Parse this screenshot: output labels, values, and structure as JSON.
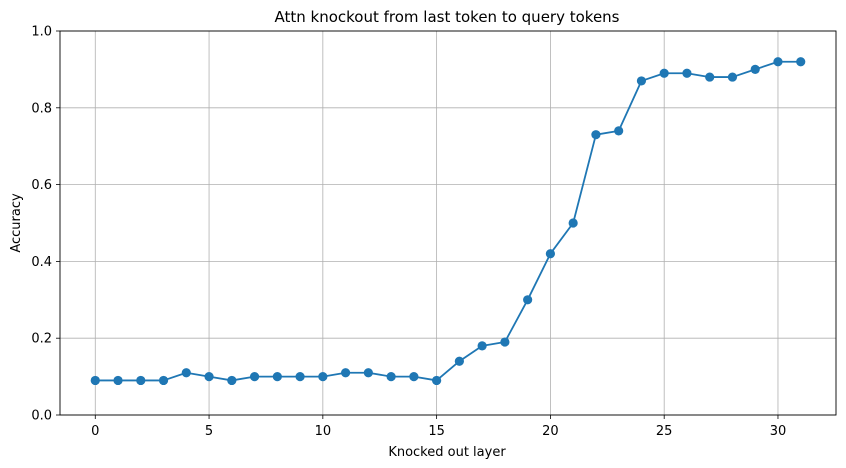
{
  "chart_data": {
    "type": "line",
    "title": "Attn knockout from last token to query tokens",
    "xlabel": "Knocked out layer",
    "ylabel": "Accuracy",
    "xlim": [
      -1.55,
      32.55
    ],
    "ylim": [
      0,
      1.0
    ],
    "x_ticks": [
      0,
      5,
      10,
      15,
      20,
      25,
      30
    ],
    "y_ticks": [
      0.0,
      0.2,
      0.4,
      0.6,
      0.8,
      1.0
    ],
    "x_tick_labels": [
      "0",
      "5",
      "10",
      "15",
      "20",
      "25",
      "30"
    ],
    "y_tick_labels": [
      "0.0",
      "0.2",
      "0.4",
      "0.6",
      "0.8",
      "1.0"
    ],
    "grid": true,
    "marker": "circle",
    "color": "#1f77b4",
    "x": [
      0,
      1,
      2,
      3,
      4,
      5,
      6,
      7,
      8,
      9,
      10,
      11,
      12,
      13,
      14,
      15,
      16,
      17,
      18,
      19,
      20,
      21,
      22,
      23,
      24,
      25,
      26,
      27,
      28,
      29,
      30,
      31
    ],
    "y": [
      0.09,
      0.09,
      0.09,
      0.09,
      0.11,
      0.1,
      0.09,
      0.1,
      0.1,
      0.1,
      0.1,
      0.11,
      0.11,
      0.1,
      0.1,
      0.09,
      0.14,
      0.18,
      0.19,
      0.3,
      0.42,
      0.5,
      0.73,
      0.74,
      0.87,
      0.89,
      0.89,
      0.88,
      0.88,
      0.9,
      0.92,
      0.92
    ]
  }
}
